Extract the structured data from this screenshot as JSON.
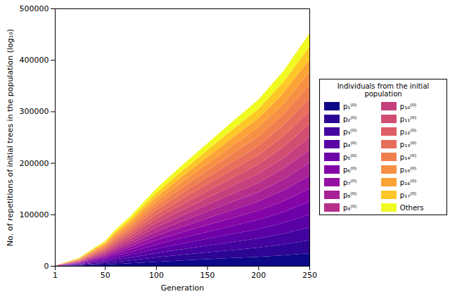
{
  "chart_data": {
    "type": "area",
    "stacked": true,
    "grid": false,
    "legend": "right",
    "legend_title": "Individuals from the initial population",
    "x_label": "Generation",
    "y_label": "No. of repetitions of initial trees in the population (log₁₀)",
    "x": [
      1,
      10,
      25,
      40,
      50,
      60,
      75,
      100,
      125,
      150,
      175,
      200,
      225,
      250
    ],
    "xlim": [
      1,
      250
    ],
    "xticks": [
      1,
      50,
      100,
      150,
      200,
      250
    ],
    "ylim": [
      0,
      500000
    ],
    "yticks": [
      0,
      100000,
      200000,
      300000,
      400000,
      500000
    ],
    "series": [
      {
        "name": "p₁⁽⁰⁾",
        "color": "#0d0887",
        "values": [
          15,
          320,
          850,
          1900,
          2600,
          3700,
          5200,
          8000,
          10500,
          12900,
          15200,
          17500,
          20500,
          24500
        ]
      },
      {
        "name": "p₂⁽⁰⁾",
        "color": "#2c0594",
        "values": [
          18,
          340,
          900,
          2050,
          2700,
          3950,
          5400,
          8400,
          10900,
          13300,
          15700,
          18000,
          21200,
          25200
        ]
      },
      {
        "name": "p₃⁽⁰⁾",
        "color": "#43039e",
        "values": [
          16,
          330,
          880,
          2000,
          2650,
          3900,
          5350,
          8300,
          10800,
          13200,
          15600,
          17900,
          21000,
          25000
        ]
      },
      {
        "name": "p₄⁽⁰⁾",
        "color": "#5901a5",
        "values": [
          17,
          335,
          890,
          2020,
          2680,
          3880,
          5420,
          8350,
          10850,
          13250,
          15650,
          18050,
          21150,
          25150
        ]
      },
      {
        "name": "p₅⁽⁰⁾",
        "color": "#6e00a8",
        "values": [
          18,
          345,
          910,
          1980,
          2640,
          3920,
          5380,
          8320,
          10880,
          13180,
          15580,
          17880,
          21080,
          25050
        ]
      },
      {
        "name": "p₆⁽⁰⁾",
        "color": "#8305a7",
        "values": [
          17,
          325,
          870,
          2010,
          2670,
          3860,
          5360,
          8360,
          10820,
          13240,
          15620,
          17960,
          21120,
          25120
        ]
      },
      {
        "name": "p₇⁽⁰⁾",
        "color": "#9511a1",
        "values": [
          16,
          338,
          895,
          2030,
          2690,
          3910,
          5410,
          8380,
          10860,
          13260,
          15640,
          17990,
          21180,
          25180
        ]
      },
      {
        "name": "p₈⁽⁰⁾",
        "color": "#a72197",
        "values": [
          17,
          332,
          885,
          1990,
          2660,
          3890,
          5390,
          8310,
          10810,
          13210,
          15590,
          17930,
          21090,
          25090
        ]
      },
      {
        "name": "p₉⁽⁰⁾",
        "color": "#b6308b",
        "values": [
          18,
          336,
          892,
          2005,
          2675,
          3895,
          5395,
          8340,
          10840,
          13230,
          15610,
          17950,
          21110,
          25110
        ]
      },
      {
        "name": "p₁₀⁽⁰⁾",
        "color": "#c5407e",
        "values": [
          17,
          334,
          888,
          2015,
          2665,
          3885,
          5405,
          8330,
          10830,
          13220,
          15600,
          17940,
          21100,
          25100
        ]
      },
      {
        "name": "p₁₁⁽⁰⁾",
        "color": "#d14e72",
        "values": [
          16,
          331,
          886,
          1995,
          2655,
          3875,
          5375,
          8305,
          10805,
          13205,
          15585,
          17925,
          21085,
          25085
        ]
      },
      {
        "name": "p₁₂⁽⁰⁾",
        "color": "#dd5e66",
        "values": [
          17,
          337,
          893,
          2008,
          2678,
          3898,
          5398,
          8345,
          10845,
          13235,
          15615,
          17955,
          21115,
          25115
        ]
      },
      {
        "name": "p₁₃⁽⁰⁾",
        "color": "#e76e5b",
        "values": [
          18,
          339,
          894,
          2012,
          2682,
          3902,
          5402,
          8355,
          10855,
          13245,
          15625,
          17965,
          21125,
          25125
        ]
      },
      {
        "name": "p₁₄⁽⁰⁾",
        "color": "#f07f4f",
        "values": [
          17,
          333,
          887,
          1998,
          2662,
          3882,
          5382,
          8315,
          10815,
          13215,
          15595,
          17935,
          21095,
          25095
        ]
      },
      {
        "name": "p₁₅⁽⁰⁾",
        "color": "#f79044",
        "values": [
          16,
          329,
          884,
          1992,
          2652,
          3872,
          5372,
          8302,
          10802,
          13202,
          15582,
          17922,
          21082,
          25082
        ]
      },
      {
        "name": "p₁₆⁽⁰⁾",
        "color": "#fca338",
        "values": [
          17,
          336,
          891,
          2006,
          2676,
          3896,
          5396,
          8336,
          10836,
          13226,
          15606,
          17946,
          21106,
          25106
        ]
      },
      {
        "name": "p₁₇⁽⁰⁾",
        "color": "#fdc827",
        "values": [
          18,
          340,
          896,
          2014,
          2684,
          3904,
          5404,
          8364,
          10864,
          13254,
          15634,
          17974,
          21134,
          25134
        ]
      },
      {
        "name": "Others",
        "color": "#f0f921",
        "values": [
          17,
          330,
          880,
          2000,
          2660,
          3880,
          5380,
          8320,
          10820,
          13220,
          15600,
          17940,
          21100,
          25100
        ]
      }
    ]
  }
}
